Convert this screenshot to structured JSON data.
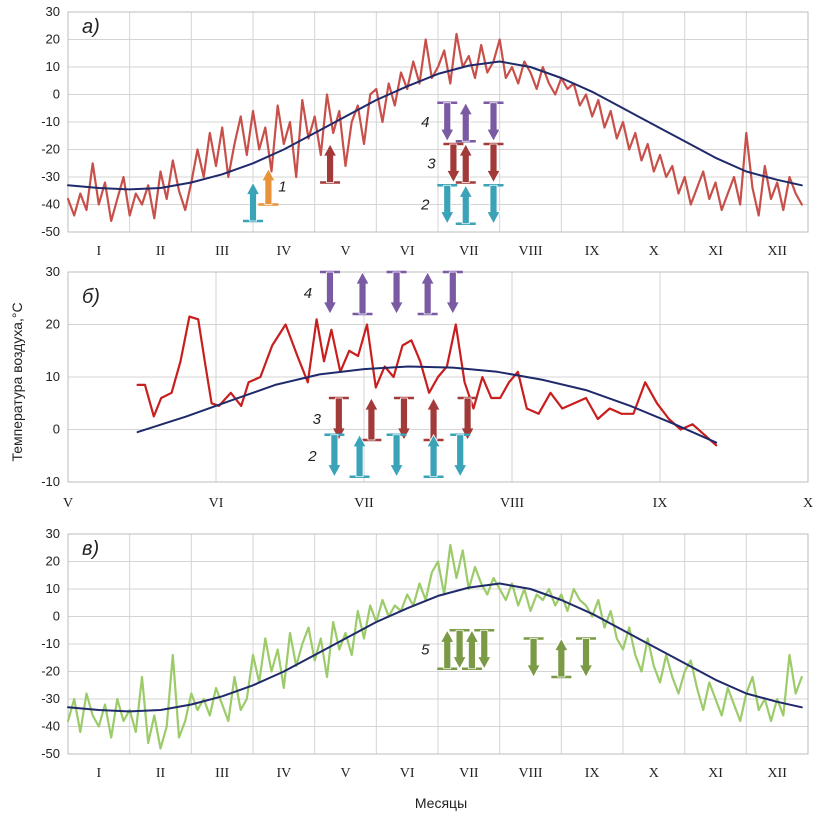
{
  "figure": {
    "ylabel": "Температура воздуха,°С",
    "xlabel": "Месяцы"
  },
  "chart_data": [
    {
      "id": "a",
      "type": "line",
      "panel_label": "а)",
      "ylim": [
        -50,
        30
      ],
      "yticks": [
        30,
        20,
        10,
        0,
        -10,
        -20,
        -30,
        -40,
        -50
      ],
      "x_range": [
        0,
        12
      ],
      "categories": [
        "I",
        "II",
        "III",
        "IV",
        "V",
        "VI",
        "VII",
        "VIII",
        "IX",
        "X",
        "XI",
        "XII"
      ],
      "grid": true,
      "colors": {
        "daily": "#c8504a",
        "smooth": "#1f2a6b"
      },
      "series": [
        {
          "style": "daily",
          "x": [
            0.0,
            0.1,
            0.2,
            0.3,
            0.4,
            0.5,
            0.6,
            0.7,
            0.8,
            0.9,
            1.0,
            1.1,
            1.2,
            1.3,
            1.4,
            1.5,
            1.6,
            1.7,
            1.8,
            1.9,
            2.0,
            2.1,
            2.2,
            2.3,
            2.4,
            2.5,
            2.6,
            2.7,
            2.8,
            2.9,
            3.0,
            3.1,
            3.2,
            3.3,
            3.4,
            3.5,
            3.6,
            3.7,
            3.8,
            3.9,
            4.0,
            4.1,
            4.2,
            4.3,
            4.4,
            4.5,
            4.6,
            4.7,
            4.8,
            4.9,
            5.0,
            5.1,
            5.2,
            5.3,
            5.4,
            5.5,
            5.6,
            5.7,
            5.8,
            5.9,
            6.0,
            6.1,
            6.2,
            6.3,
            6.4,
            6.5,
            6.6,
            6.7,
            6.8,
            6.9,
            7.0,
            7.1,
            7.2,
            7.3,
            7.4,
            7.5,
            7.6,
            7.7,
            7.8,
            7.9,
            8.0,
            8.1,
            8.2,
            8.3,
            8.4,
            8.5,
            8.6,
            8.7,
            8.8,
            8.9,
            9.0,
            9.1,
            9.2,
            9.3,
            9.4,
            9.5,
            9.6,
            9.7,
            9.8,
            9.9,
            10.0,
            10.1,
            10.2,
            10.3,
            10.4,
            10.5,
            10.6,
            10.7,
            10.8,
            10.9,
            11.0,
            11.1,
            11.2,
            11.3,
            11.4,
            11.5,
            11.6,
            11.7,
            11.8,
            11.9
          ],
          "values": [
            -38,
            -44,
            -36,
            -42,
            -25,
            -40,
            -32,
            -46,
            -38,
            -30,
            -44,
            -36,
            -40,
            -33,
            -45,
            -28,
            -38,
            -24,
            -35,
            -42,
            -32,
            -20,
            -30,
            -14,
            -26,
            -12,
            -30,
            -18,
            -8,
            -22,
            -6,
            -20,
            -12,
            -28,
            -4,
            -18,
            -10,
            -30,
            -2,
            -16,
            -8,
            -22,
            0,
            -14,
            -6,
            -26,
            -10,
            -4,
            -18,
            0,
            2,
            -10,
            4,
            -4,
            8,
            2,
            12,
            4,
            20,
            6,
            10,
            16,
            4,
            22,
            10,
            14,
            6,
            18,
            8,
            12,
            20,
            6,
            10,
            4,
            12,
            8,
            2,
            10,
            4,
            0,
            6,
            2,
            4,
            -4,
            0,
            -8,
            -2,
            -12,
            -6,
            -16,
            -10,
            -20,
            -14,
            -24,
            -18,
            -28,
            -22,
            -30,
            -26,
            -36,
            -30,
            -40,
            -34,
            -28,
            -38,
            -32,
            -42,
            -36,
            -30,
            -40,
            -14,
            -34,
            -44,
            -26,
            -38,
            -32,
            -42,
            -30,
            -36,
            -40
          ],
          "name": ""
        },
        {
          "style": "smooth",
          "x": [
            0.0,
            0.5,
            1.0,
            1.5,
            2.0,
            2.5,
            3.0,
            3.5,
            4.0,
            4.5,
            5.0,
            5.5,
            6.0,
            6.5,
            7.0,
            7.5,
            8.0,
            8.5,
            9.0,
            9.5,
            10.0,
            10.5,
            11.0,
            11.5,
            11.9
          ],
          "values": [
            -33,
            -34,
            -34.5,
            -34,
            -32,
            -29,
            -25,
            -20,
            -14,
            -8,
            -2,
            3,
            7.5,
            10.5,
            12,
            10,
            6,
            1,
            -5,
            -11,
            -17,
            -23,
            -28,
            -31,
            -33
          ],
          "name": ""
        }
      ],
      "arrow_groups": [
        {
          "label": "1",
          "color": "#e8923a",
          "arrows": [
            {
              "x": 3.25,
              "dir": "up"
            }
          ],
          "y_from": -40,
          "y_to": -27
        },
        {
          "label": "",
          "color": "#3aa3b8",
          "arrows": [
            {
              "x": 3.0,
              "dir": "up"
            }
          ],
          "y_from": -46,
          "y_to": -32
        },
        {
          "label": "",
          "color": "#a33a3a",
          "arrows": [
            {
              "x": 4.25,
              "dir": "up"
            }
          ],
          "y_from": -32,
          "y_to": -18
        },
        {
          "label": "4",
          "color": "#7a5aa3",
          "arrows": [
            {
              "x": 6.15,
              "dir": "down"
            },
            {
              "x": 6.45,
              "dir": "up"
            },
            {
              "x": 6.9,
              "dir": "down"
            }
          ],
          "y_from": -17,
          "y_to": -3
        },
        {
          "label": "3",
          "color": "#a33a3a",
          "arrows": [
            {
              "x": 6.25,
              "dir": "down"
            },
            {
              "x": 6.45,
              "dir": "up"
            },
            {
              "x": 6.9,
              "dir": "down"
            }
          ],
          "y_from": -32,
          "y_to": -18
        },
        {
          "label": "2",
          "color": "#3aa3b8",
          "arrows": [
            {
              "x": 6.15,
              "dir": "down"
            },
            {
              "x": 6.45,
              "dir": "up"
            },
            {
              "x": 6.9,
              "dir": "down"
            }
          ],
          "y_from": -47,
          "y_to": -33
        }
      ]
    },
    {
      "id": "b",
      "type": "line",
      "panel_label": "б)",
      "ylim": [
        -10,
        30
      ],
      "yticks": [
        30,
        20,
        10,
        0,
        -10
      ],
      "x_range": [
        0,
        5
      ],
      "categories": [
        "V",
        "VI",
        "VII",
        "VIII",
        "IX",
        "X"
      ],
      "category_anchor": "edge",
      "grid": true,
      "colors": {
        "daily": "#c81e1e",
        "smooth": "#1f2a6b"
      },
      "series": [
        {
          "style": "daily",
          "x": [
            0.47,
            0.52,
            0.58,
            0.63,
            0.7,
            0.76,
            0.82,
            0.88,
            0.93,
            0.97,
            1.02,
            1.1,
            1.17,
            1.22,
            1.3,
            1.38,
            1.47,
            1.55,
            1.62,
            1.68,
            1.73,
            1.78,
            1.84,
            1.9,
            1.96,
            2.02,
            2.08,
            2.14,
            2.2,
            2.26,
            2.32,
            2.38,
            2.44,
            2.5,
            2.56,
            2.62,
            2.68,
            2.74,
            2.8,
            2.86,
            2.92,
            2.98,
            3.04,
            3.1,
            3.18,
            3.26,
            3.34,
            3.42,
            3.5,
            3.58,
            3.66,
            3.74,
            3.82,
            3.9,
            3.98,
            4.06,
            4.14,
            4.22,
            4.3,
            4.38
          ],
          "values": [
            8.5,
            8.5,
            2.5,
            6,
            7,
            13,
            21.5,
            21,
            12,
            5,
            4.5,
            7,
            4.5,
            9,
            10,
            16,
            20,
            14,
            9,
            21,
            13,
            19,
            11,
            15,
            14,
            20,
            8,
            12,
            10,
            16,
            17,
            13,
            7,
            10,
            12,
            20,
            9,
            4,
            10,
            6,
            6,
            9,
            11,
            4,
            3,
            7,
            4,
            5,
            6,
            2,
            4,
            3,
            3,
            9,
            5,
            2,
            0,
            1,
            -1,
            -3
          ],
          "name": ""
        },
        {
          "style": "smooth",
          "x": [
            0.47,
            0.8,
            1.1,
            1.4,
            1.7,
            2.0,
            2.3,
            2.6,
            2.9,
            3.2,
            3.5,
            3.8,
            4.1,
            4.38
          ],
          "values": [
            -0.5,
            2.5,
            5.5,
            8.5,
            10.5,
            11.5,
            12,
            11.8,
            11,
            9.5,
            7.5,
            4.5,
            1,
            -2.5
          ],
          "name": ""
        }
      ],
      "arrow_groups": [
        {
          "label": "4",
          "color": "#7a5aa3",
          "arrows": [
            {
              "x": 1.77,
              "dir": "down"
            },
            {
              "x": 1.99,
              "dir": "up"
            },
            {
              "x": 2.22,
              "dir": "down"
            },
            {
              "x": 2.43,
              "dir": "up"
            },
            {
              "x": 2.6,
              "dir": "down"
            }
          ],
          "y_from": 22,
          "y_to": 30
        },
        {
          "label": "3",
          "color": "#a33a3a",
          "arrows": [
            {
              "x": 1.83,
              "dir": "down"
            },
            {
              "x": 2.05,
              "dir": "up"
            },
            {
              "x": 2.27,
              "dir": "down"
            },
            {
              "x": 2.47,
              "dir": "up"
            },
            {
              "x": 2.7,
              "dir": "down"
            }
          ],
          "y_from": -2,
          "y_to": 6
        },
        {
          "label": "2",
          "color": "#3aa3b8",
          "arrows": [
            {
              "x": 1.8,
              "dir": "down"
            },
            {
              "x": 1.97,
              "dir": "up"
            },
            {
              "x": 2.22,
              "dir": "down"
            },
            {
              "x": 2.47,
              "dir": "up"
            },
            {
              "x": 2.65,
              "dir": "down"
            }
          ],
          "y_from": -9,
          "y_to": -1
        }
      ]
    },
    {
      "id": "c",
      "type": "line",
      "panel_label": "в)",
      "ylim": [
        -50,
        30
      ],
      "yticks": [
        30,
        20,
        10,
        0,
        -10,
        -20,
        -30,
        -40,
        -50
      ],
      "x_range": [
        0,
        12
      ],
      "categories": [
        "I",
        "II",
        "III",
        "IV",
        "V",
        "VI",
        "VII",
        "VIII",
        "IX",
        "X",
        "XI",
        "XII"
      ],
      "grid": true,
      "colors": {
        "daily": "#9ccb6a",
        "smooth": "#1f2a6b"
      },
      "series": [
        {
          "style": "daily",
          "x": [
            0.0,
            0.1,
            0.2,
            0.3,
            0.4,
            0.5,
            0.6,
            0.7,
            0.8,
            0.9,
            1.0,
            1.1,
            1.2,
            1.3,
            1.4,
            1.5,
            1.6,
            1.7,
            1.8,
            1.9,
            2.0,
            2.1,
            2.2,
            2.3,
            2.4,
            2.5,
            2.6,
            2.7,
            2.8,
            2.9,
            3.0,
            3.1,
            3.2,
            3.3,
            3.4,
            3.5,
            3.6,
            3.7,
            3.8,
            3.9,
            4.0,
            4.1,
            4.2,
            4.3,
            4.4,
            4.5,
            4.6,
            4.7,
            4.8,
            4.9,
            5.0,
            5.1,
            5.2,
            5.3,
            5.4,
            5.5,
            5.6,
            5.7,
            5.8,
            5.9,
            6.0,
            6.1,
            6.2,
            6.3,
            6.4,
            6.5,
            6.6,
            6.7,
            6.8,
            6.9,
            7.0,
            7.1,
            7.2,
            7.3,
            7.4,
            7.5,
            7.6,
            7.7,
            7.8,
            7.9,
            8.0,
            8.1,
            8.2,
            8.3,
            8.4,
            8.5,
            8.6,
            8.7,
            8.8,
            8.9,
            9.0,
            9.1,
            9.2,
            9.3,
            9.4,
            9.5,
            9.6,
            9.7,
            9.8,
            9.9,
            10.0,
            10.1,
            10.2,
            10.3,
            10.4,
            10.5,
            10.6,
            10.7,
            10.8,
            10.9,
            11.0,
            11.1,
            11.2,
            11.3,
            11.4,
            11.5,
            11.6,
            11.7,
            11.8,
            11.9
          ],
          "values": [
            -38,
            -30,
            -42,
            -28,
            -36,
            -40,
            -32,
            -44,
            -30,
            -38,
            -34,
            -42,
            -22,
            -46,
            -36,
            -48,
            -40,
            -14,
            -44,
            -38,
            -28,
            -34,
            -30,
            -36,
            -26,
            -32,
            -38,
            -22,
            -34,
            -30,
            -14,
            -24,
            -8,
            -20,
            -12,
            -26,
            -6,
            -18,
            -10,
            -4,
            -16,
            -8,
            -22,
            -2,
            -12,
            -6,
            -14,
            2,
            -8,
            4,
            -2,
            6,
            0,
            4,
            2,
            8,
            4,
            12,
            6,
            16,
            20,
            8,
            26,
            14,
            24,
            10,
            18,
            12,
            8,
            14,
            10,
            6,
            12,
            4,
            10,
            2,
            8,
            6,
            10,
            4,
            8,
            2,
            10,
            6,
            4,
            0,
            6,
            -4,
            2,
            -8,
            -12,
            -4,
            -14,
            -20,
            -8,
            -18,
            -24,
            -14,
            -22,
            -28,
            -20,
            -16,
            -26,
            -34,
            -24,
            -30,
            -36,
            -26,
            -32,
            -38,
            -28,
            -22,
            -34,
            -30,
            -38,
            -30,
            -36,
            -14,
            -28,
            -22
          ],
          "name": ""
        },
        {
          "style": "smooth",
          "x": [
            0.0,
            0.5,
            1.0,
            1.5,
            2.0,
            2.5,
            3.0,
            3.5,
            4.0,
            4.5,
            5.0,
            5.5,
            6.0,
            6.5,
            7.0,
            7.5,
            8.0,
            8.5,
            9.0,
            9.5,
            10.0,
            10.5,
            11.0,
            11.5,
            11.9
          ],
          "values": [
            -33,
            -34,
            -34.5,
            -34,
            -32,
            -29,
            -25,
            -20,
            -14,
            -8,
            -2,
            3,
            7.5,
            10.5,
            12,
            10,
            6,
            1,
            -5,
            -11,
            -17,
            -23,
            -28,
            -31,
            -33
          ],
          "name": ""
        }
      ],
      "arrow_groups": [
        {
          "label": "5",
          "color": "#7a9a45",
          "arrows": [
            {
              "x": 6.15,
              "dir": "up"
            },
            {
              "x": 6.35,
              "dir": "down"
            },
            {
              "x": 6.55,
              "dir": "up"
            },
            {
              "x": 6.75,
              "dir": "down"
            }
          ],
          "y_from": -19,
          "y_to": -5
        },
        {
          "label": "",
          "color": "#7a9a45",
          "arrows": [
            {
              "x": 7.55,
              "dir": "down"
            },
            {
              "x": 8.0,
              "dir": "up"
            },
            {
              "x": 8.4,
              "dir": "down"
            }
          ],
          "y_from": -22,
          "y_to": -8
        }
      ]
    }
  ]
}
